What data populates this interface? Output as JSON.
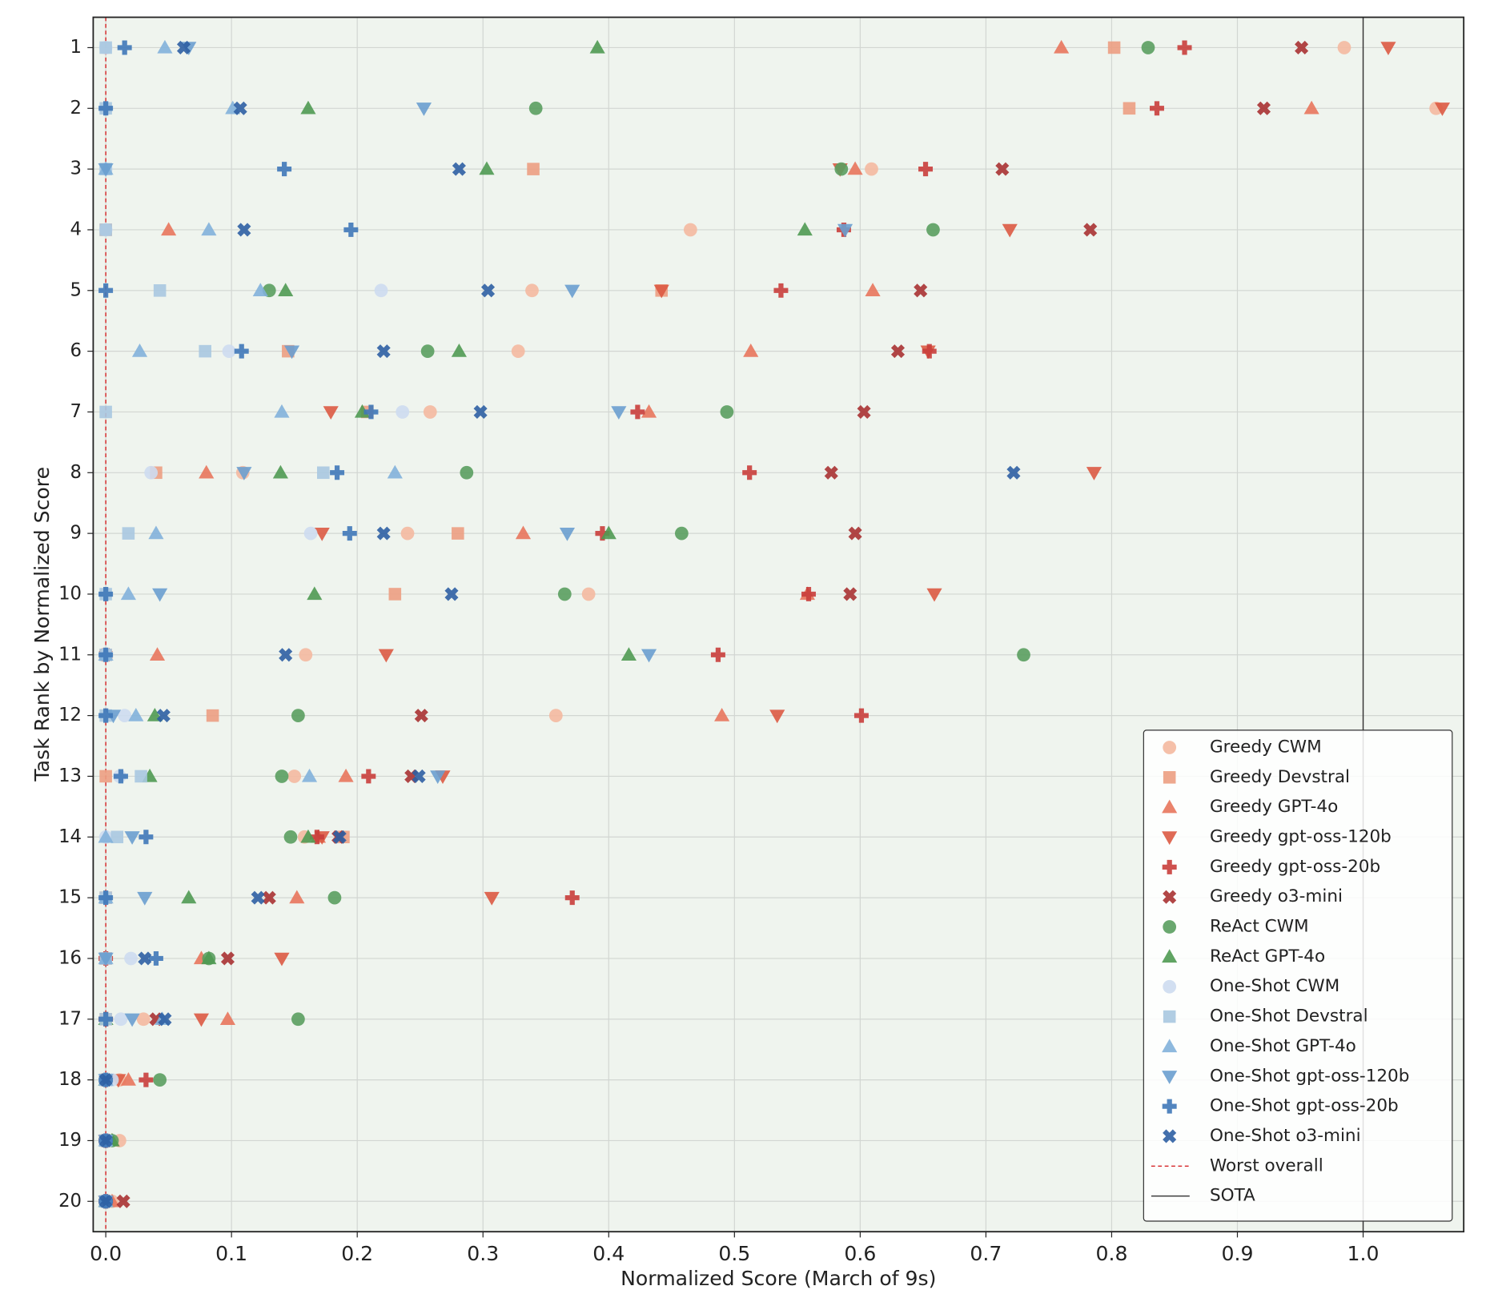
{
  "chart_data": {
    "type": "scatter",
    "x_label": "Normalized Score (March of 9s)",
    "y_label": "Task Rank by Normalized Score",
    "xlim": [
      -0.01,
      1.08
    ],
    "ylim": [
      20.5,
      0.5
    ],
    "xticks": [
      {
        "value": 0,
        "label": "0.0"
      },
      0.1,
      0.2,
      0.3,
      0.4,
      0.5,
      0.6,
      0.7,
      0.8,
      0.9,
      {
        "value": 1,
        "label": "1.0"
      }
    ],
    "yticks": [
      1,
      2,
      3,
      4,
      5,
      6,
      7,
      8,
      9,
      10,
      11,
      12,
      13,
      14,
      15,
      16,
      17,
      18,
      19,
      20
    ],
    "grid": true,
    "legend": "lower right",
    "y": [
      1,
      2,
      3,
      4,
      5,
      6,
      7,
      8,
      9,
      10,
      11,
      12,
      13,
      14,
      15,
      16,
      17,
      18,
      19,
      20
    ],
    "series": [
      {
        "name": "Greedy CWM",
        "color": "#f4b9a0",
        "marker": "circle",
        "x": [
          0.985,
          1.058,
          0.609,
          0.465,
          0.339,
          0.328,
          0.258,
          0.109,
          0.24,
          0.384,
          0.159,
          0.358,
          0.15,
          0.158,
          0.0,
          0.0,
          0.03,
          0.011,
          0.011,
          0.005
        ]
      },
      {
        "name": "Greedy Devstral",
        "color": "#ec9e82",
        "marker": "square",
        "x": [
          0.802,
          0.814,
          0.34,
          0.0,
          0.442,
          0.145,
          0.208,
          0.04,
          0.28,
          0.23,
          0.0,
          0.085,
          0.0,
          0.189,
          0.0,
          0.0,
          0.0,
          0.0,
          0.0,
          0.0
        ]
      },
      {
        "name": "Greedy GPT-4o",
        "color": "#e8765c",
        "marker": "triangle-up",
        "x": [
          0.76,
          0.959,
          0.596,
          0.05,
          0.61,
          0.513,
          0.432,
          0.08,
          0.332,
          0.558,
          0.041,
          0.49,
          0.191,
          0.169,
          0.152,
          0.076,
          0.097,
          0.018,
          0.005,
          0.005
        ]
      },
      {
        "name": "Greedy gpt-oss-120b",
        "color": "#dc5a42",
        "marker": "triangle-down",
        "x": [
          1.02,
          1.063,
          0.584,
          0.719,
          0.442,
          0.654,
          0.179,
          0.786,
          0.172,
          0.659,
          0.223,
          0.534,
          0.268,
          0.172,
          0.307,
          0.14,
          0.076,
          0.01,
          0.0,
          0.0
        ]
      },
      {
        "name": "Greedy gpt-oss-20b",
        "color": "#c93e3b",
        "marker": "plus",
        "x": [
          0.858,
          0.836,
          0.652,
          0.587,
          0.537,
          0.655,
          0.423,
          0.512,
          0.395,
          0.559,
          0.487,
          0.601,
          0.209,
          0.168,
          0.371,
          0.0,
          0.0,
          0.032,
          0.0,
          0.0
        ]
      },
      {
        "name": "Greedy o3-mini",
        "color": "#a83232",
        "marker": "x",
        "x": [
          0.951,
          0.921,
          0.713,
          0.783,
          0.648,
          0.63,
          0.603,
          0.577,
          0.596,
          0.592,
          0.0,
          0.251,
          0.243,
          0.185,
          0.13,
          0.097,
          0.04,
          0.0,
          0.0,
          0.014
        ]
      },
      {
        "name": "ReAct CWM",
        "color": "#5a9e5f",
        "marker": "circle",
        "x": [
          0.829,
          0.342,
          0.585,
          0.658,
          0.13,
          0.256,
          0.494,
          0.287,
          0.458,
          0.365,
          0.73,
          0.153,
          0.14,
          0.147,
          0.182,
          0.082,
          0.153,
          0.043,
          0.005,
          0.0
        ]
      },
      {
        "name": "ReAct GPT-4o",
        "color": "#4f9a52",
        "marker": "triangle-up",
        "x": [
          0.391,
          0.161,
          0.303,
          0.556,
          0.143,
          0.281,
          0.204,
          0.139,
          0.4,
          0.166,
          0.416,
          0.039,
          0.035,
          0.161,
          0.066,
          0.082,
          0.0,
          0.0,
          0.005,
          0.0
        ]
      },
      {
        "name": "One-Shot CWM",
        "color": "#cddcef",
        "marker": "circle",
        "x": [
          0.0,
          0.0,
          0.0,
          0.0,
          0.219,
          0.098,
          0.236,
          0.036,
          0.163,
          0.0,
          0.0,
          0.015,
          0.011,
          0.0,
          0.0,
          0.02,
          0.012,
          0.005,
          0.0,
          0.0
        ]
      },
      {
        "name": "One-Shot Devstral",
        "color": "#a9c8e0",
        "marker": "square",
        "x": [
          0.0,
          0.0,
          0.0,
          0.0,
          0.043,
          0.079,
          0.0,
          0.173,
          0.018,
          0.0,
          0.0,
          0.0,
          0.028,
          0.009,
          0.0,
          0.0,
          0.0,
          0.0,
          0.0,
          0.0
        ]
      },
      {
        "name": "One-Shot GPT-4o",
        "color": "#82b1da",
        "marker": "triangle-up",
        "x": [
          0.047,
          0.101,
          0.0,
          0.082,
          0.123,
          0.027,
          0.14,
          0.23,
          0.04,
          0.018,
          0.0,
          0.024,
          0.162,
          0.0,
          0.0,
          0.0,
          0.045,
          0.0,
          0.0,
          0.0
        ]
      },
      {
        "name": "One-Shot gpt-oss-120b",
        "color": "#6a9fcf",
        "marker": "triangle-down",
        "x": [
          0.066,
          0.253,
          0.0,
          0.588,
          0.371,
          0.148,
          0.408,
          0.11,
          0.367,
          0.043,
          0.432,
          0.006,
          0.264,
          0.021,
          0.031,
          0.0,
          0.021,
          0.0,
          0.0,
          0.0
        ]
      },
      {
        "name": "One-Shot gpt-oss-20b",
        "color": "#3f78b8",
        "marker": "plus",
        "x": [
          0.015,
          0.0,
          0.142,
          0.195,
          0.0,
          0.108,
          0.211,
          0.184,
          0.194,
          0.0,
          0.0,
          0.0,
          0.012,
          0.032,
          0.0,
          0.04,
          0.0,
          0.0,
          0.0,
          0.0
        ]
      },
      {
        "name": "One-Shot o3-mini",
        "color": "#2d5fa3",
        "marker": "x",
        "x": [
          0.062,
          0.107,
          0.281,
          0.11,
          0.304,
          0.221,
          0.298,
          0.722,
          0.221,
          0.275,
          0.143,
          0.046,
          0.249,
          0.186,
          0.121,
          0.031,
          0.047,
          0.0,
          0.0,
          0.0
        ]
      }
    ],
    "reference_lines": [
      {
        "name": "Worst overall",
        "value": 0,
        "color": "#d62728",
        "style": "dashed"
      },
      {
        "name": "SOTA",
        "value": 1,
        "color": "#333333",
        "style": "solid"
      }
    ]
  }
}
